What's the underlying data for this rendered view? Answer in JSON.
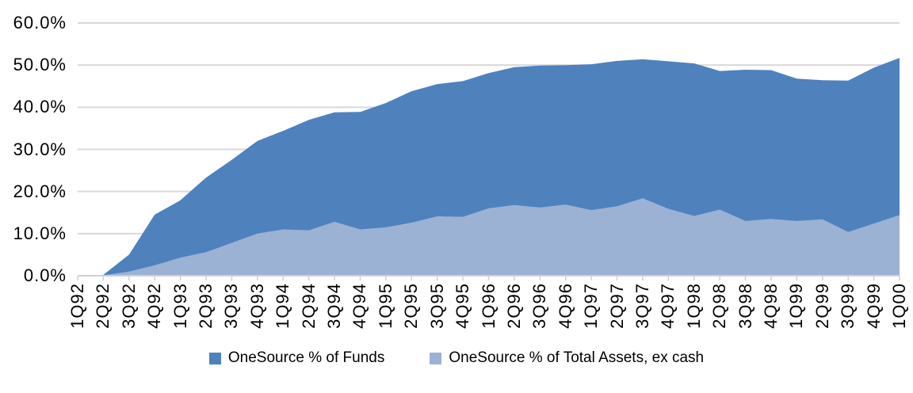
{
  "chart_data": {
    "type": "area",
    "title": "",
    "categories": [
      "1Q92",
      "2Q92",
      "3Q92",
      "4Q92",
      "1Q93",
      "2Q93",
      "3Q93",
      "4Q93",
      "1Q94",
      "2Q94",
      "3Q94",
      "4Q94",
      "1Q95",
      "2Q95",
      "3Q95",
      "4Q95",
      "1Q96",
      "2Q96",
      "3Q96",
      "4Q96",
      "1Q97",
      "2Q97",
      "3Q97",
      "4Q97",
      "1Q98",
      "2Q98",
      "3Q98",
      "4Q98",
      "1Q99",
      "2Q99",
      "3Q99",
      "4Q99",
      "1Q00"
    ],
    "series": [
      {
        "name": "OneSource % of Funds",
        "color": "#4F81BD",
        "values": [
          0.0,
          0.2,
          5.0,
          14.5,
          17.9,
          23.3,
          27.5,
          32.0,
          34.4,
          37.0,
          38.8,
          38.9,
          41.0,
          43.8,
          45.5,
          46.2,
          48.1,
          49.5,
          49.9,
          50.0,
          50.2,
          51.0,
          51.4,
          50.9,
          50.4,
          48.6,
          48.9,
          48.8,
          46.8,
          46.4,
          46.3,
          49.4,
          51.7
        ]
      },
      {
        "name": "OneSource % of Total Assets, ex cash",
        "color": "#9BB2D4",
        "values": [
          0.0,
          0.1,
          1.0,
          2.5,
          4.3,
          5.6,
          7.8,
          10.0,
          11.0,
          10.8,
          12.8,
          11.0,
          11.5,
          12.6,
          14.1,
          14.0,
          16.0,
          16.8,
          16.2,
          16.9,
          15.6,
          16.5,
          18.4,
          15.9,
          14.2,
          15.7,
          13.0,
          13.5,
          13.0,
          13.4,
          10.4,
          12.4,
          14.4
        ]
      }
    ],
    "y_axis": {
      "min": 0,
      "max": 60,
      "step": 10,
      "tick_labels": [
        "0.0%",
        "10.0%",
        "20.0%",
        "30.0%",
        "40.0%",
        "50.0%",
        "60.0%"
      ]
    },
    "x_axis": {
      "label_rotation": "up"
    },
    "legend_position": "bottom",
    "grid": true,
    "colors": {
      "gridline": "#D9D9D9",
      "axis": "#D0D0D0",
      "text": "#000000",
      "background": "#FFFFFF"
    }
  }
}
